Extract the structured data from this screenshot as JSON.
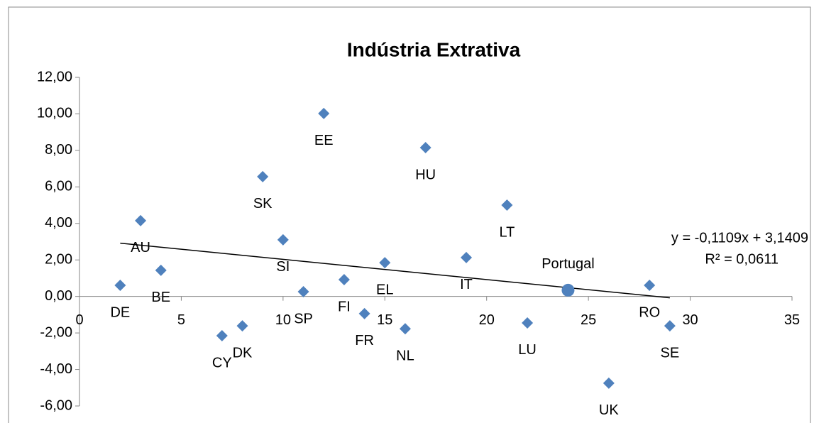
{
  "chart_data": {
    "type": "scatter",
    "title": "Indústria Extrativa",
    "series": [
      {
        "marker": "diamond",
        "color": "#4f81bd",
        "x": [
          2,
          3,
          4,
          7,
          8,
          9,
          10,
          11,
          12,
          13,
          14,
          15,
          16,
          17,
          19,
          21,
          22,
          26,
          28,
          29
        ],
        "values": [
          0.61,
          4.15,
          1.43,
          -2.15,
          -1.61,
          6.56,
          3.1,
          0.26,
          10.02,
          0.92,
          -0.94,
          1.85,
          -1.77,
          8.15,
          2.13,
          5.0,
          -1.45,
          -4.75,
          0.61,
          -1.61
        ],
        "labels": [
          "DE",
          "AU",
          "BE",
          "CY",
          "DK",
          "SK",
          "SI",
          "SP",
          "EE",
          "FI",
          "FR",
          "EL",
          "NL",
          "HU",
          "IT",
          "LT",
          "LU",
          "UK",
          "RO",
          "SE"
        ],
        "label_position": "below"
      },
      {
        "marker": "circle",
        "color": "#4f81bd",
        "x": [
          24
        ],
        "values": [
          0.34
        ],
        "labels": [
          "Portugal"
        ],
        "label_position": "above"
      }
    ],
    "trendline": {
      "slope": -0.1109,
      "intercept": 3.1409,
      "equation": "y = -0,1109x + 3,1409",
      "r2": "R² = 0,0611"
    },
    "xlim": [
      0,
      35
    ],
    "xticks": [
      0,
      5,
      10,
      15,
      20,
      25,
      30,
      35
    ],
    "ylim": [
      -6,
      12
    ],
    "yticks": [
      {
        "value": -6,
        "label": "-6,00"
      },
      {
        "value": -4,
        "label": "-4,00"
      },
      {
        "value": -2,
        "label": "-2,00"
      },
      {
        "value": 0,
        "label": "0,00"
      },
      {
        "value": 2,
        "label": "2,00"
      },
      {
        "value": 4,
        "label": "4,00"
      },
      {
        "value": 6,
        "label": "6,00"
      },
      {
        "value": 8,
        "label": "8,00"
      },
      {
        "value": 10,
        "label": "10,00"
      },
      {
        "value": 12,
        "label": "12,00"
      }
    ]
  }
}
